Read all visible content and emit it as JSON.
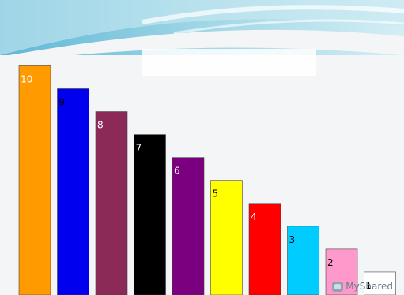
{
  "chart_data": {
    "type": "bar",
    "title": "",
    "xlabel": "",
    "ylabel": "",
    "ylim": [
      0,
      10.6
    ],
    "categories": [
      "10",
      "9",
      "8",
      "7",
      "6",
      "5",
      "4",
      "3",
      "2",
      "1"
    ],
    "values": [
      10,
      9,
      8,
      7,
      6,
      5,
      4,
      3,
      2,
      1
    ],
    "labels": [
      "10",
      "9",
      "8",
      "7",
      "6",
      "5",
      "4",
      "3",
      "2",
      "1"
    ],
    "colors": [
      "#ff9a00",
      "#0000ee",
      "#8b2a57",
      "#000000",
      "#7a0080",
      "#ffff00",
      "#ff0000",
      "#00ccff",
      "#ff99cc",
      "#ffffff"
    ],
    "label_colors": [
      "#ffffff",
      "#000000",
      "#ffffff",
      "#ffffff",
      "#ffffff",
      "#000000",
      "#ffffff",
      "#000000",
      "#000000",
      "#000000"
    ],
    "grid": false,
    "legend": "none"
  },
  "watermark": {
    "icon": "myshared-logo-icon",
    "text": "MyShared"
  }
}
